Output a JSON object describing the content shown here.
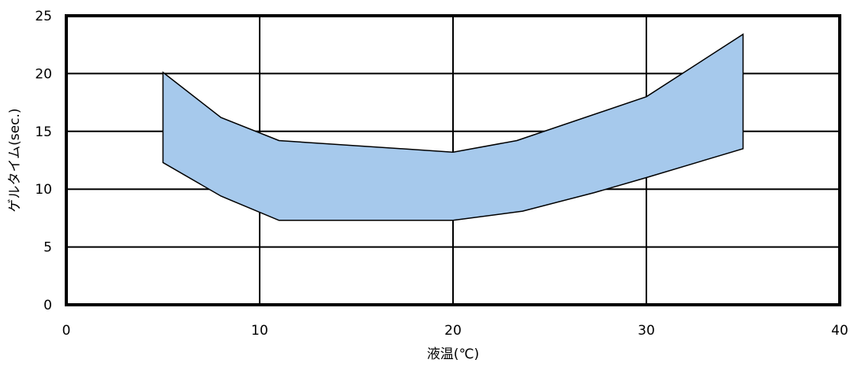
{
  "chart_data": {
    "type": "area",
    "title": "",
    "xlabel": "液温(℃)",
    "ylabel": "ゲルタイム(sec.)",
    "xlim": [
      0,
      40
    ],
    "ylim": [
      0,
      25
    ],
    "xticks": [
      0,
      10,
      20,
      30,
      40
    ],
    "yticks": [
      0,
      5,
      10,
      15,
      20,
      25
    ],
    "grid": true,
    "legend": "none",
    "band_color": "#a6c9ec",
    "series": [
      {
        "role": "upper",
        "x": [
          5,
          8,
          11,
          20,
          23.3,
          30,
          35
        ],
        "y": [
          20.1,
          16.2,
          14.2,
          13.2,
          14.2,
          18,
          23.4
        ]
      },
      {
        "role": "lower",
        "x": [
          5,
          8,
          11,
          20,
          23.6,
          27.3,
          30,
          35
        ],
        "y": [
          12.3,
          9.4,
          7.3,
          7.3,
          8.1,
          9.7,
          11,
          13.5
        ]
      }
    ]
  }
}
